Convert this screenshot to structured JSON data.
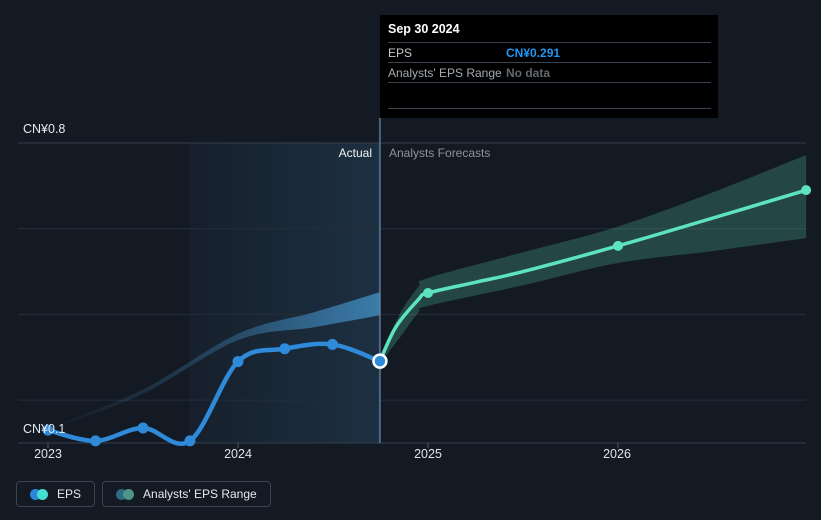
{
  "tooltip": {
    "date": "Sep 30 2024",
    "rows": [
      {
        "label": "EPS",
        "value": "CN¥0.291",
        "value_color": "#2196f3"
      },
      {
        "label": "Analysts' EPS Range",
        "value": "No data",
        "value_color": "#60686f"
      }
    ]
  },
  "legend": {
    "items": [
      {
        "label": "EPS",
        "dot_colors": [
          "#2b87d8",
          "#45dcd2"
        ]
      },
      {
        "label": "Analysts' EPS Range",
        "dot_colors": [
          "#2f6a85",
          "#4f9488"
        ]
      }
    ]
  },
  "chart_data": {
    "type": "line",
    "title": "EPS actual vs analysts forecasts",
    "currency": "CN¥",
    "ylim": [
      0.1,
      0.8
    ],
    "y_axis_labels": {
      "top": "CN¥0.8",
      "bottom": "CN¥0.1"
    },
    "y_gridline_values": [
      0.8,
      0.6,
      0.4,
      0.2
    ],
    "y_axis_value": 0.1,
    "region_labels": {
      "actual": "Actual",
      "forecast": "Analysts Forecasts"
    },
    "actual_region": {
      "start_year": 2023.745,
      "end_year": 2024.747
    },
    "hover": {
      "date": "Sep 30 2024",
      "year": 2024.747,
      "value": 0.291
    },
    "x_axis": {
      "ticks": [
        {
          "label": "2023",
          "year": 2023
        },
        {
          "label": "2024",
          "year": 2024
        },
        {
          "label": "2025",
          "year": 2025
        },
        {
          "label": "2026",
          "year": 2026
        }
      ]
    },
    "series": [
      {
        "name": "EPS",
        "kind": "actual",
        "color": "#2f8ad9",
        "points": [
          {
            "date": "Dec 31 2022",
            "year": 2023.0,
            "value": 0.13
          },
          {
            "date": "Mar 31 2023",
            "year": 2023.25,
            "value": 0.105
          },
          {
            "date": "Jun 30 2023",
            "year": 2023.5,
            "value": 0.135
          },
          {
            "date": "Sep 30 2023",
            "year": 2023.747,
            "value": 0.105
          },
          {
            "date": "Dec 31 2023",
            "year": 2024.0,
            "value": 0.29
          },
          {
            "date": "Mar 31 2024",
            "year": 2024.246,
            "value": 0.32
          },
          {
            "date": "Jun 30 2024",
            "year": 2024.497,
            "value": 0.33
          },
          {
            "date": "Sep 30 2024",
            "year": 2024.747,
            "value": 0.291
          }
        ]
      },
      {
        "name": "EPS forecast",
        "kind": "forecast",
        "color": "#5de3c1",
        "line_samples": [
          [
            2024.747,
            0.291
          ],
          [
            2024.83,
            0.37
          ],
          [
            2024.95,
            0.435
          ],
          [
            2025.0,
            0.45
          ],
          [
            2025.25,
            0.475
          ],
          [
            2025.5,
            0.5
          ],
          [
            2026.0,
            0.56
          ],
          [
            2026.5,
            0.625
          ],
          [
            2026.99,
            0.69
          ]
        ],
        "points": [
          {
            "date": "Dec 31 2024",
            "year": 2025.0,
            "value": 0.45
          },
          {
            "date": "Dec 31 2025",
            "year": 2026.0,
            "value": 0.56
          },
          {
            "date": "Dec 31 2026",
            "year": 2026.99,
            "value": 0.69
          }
        ]
      }
    ],
    "analyst_range_forecast": {
      "fill": "rgba(95,227,193,0.22)",
      "top": [
        [
          2024.747,
          0.295
        ],
        [
          2024.85,
          0.4
        ],
        [
          2024.95,
          0.465
        ],
        [
          2025.0,
          0.485
        ],
        [
          2025.5,
          0.545
        ],
        [
          2026.0,
          0.605
        ],
        [
          2026.5,
          0.685
        ],
        [
          2026.99,
          0.772
        ]
      ],
      "bottom": [
        [
          2024.747,
          0.285
        ],
        [
          2024.85,
          0.345
        ],
        [
          2024.95,
          0.405
        ],
        [
          2025.0,
          0.42
        ],
        [
          2025.5,
          0.468
        ],
        [
          2026.0,
          0.52
        ],
        [
          2026.5,
          0.548
        ],
        [
          2026.99,
          0.578
        ]
      ]
    },
    "analyst_range_past": {
      "top": [
        [
          2023.0,
          0.135
        ],
        [
          2023.5,
          0.225
        ],
        [
          2024.0,
          0.355
        ],
        [
          2024.4,
          0.405
        ],
        [
          2024.747,
          0.452
        ]
      ],
      "bottom": [
        [
          2023.0,
          0.13
        ],
        [
          2023.5,
          0.215
        ],
        [
          2024.0,
          0.34
        ],
        [
          2024.4,
          0.37
        ],
        [
          2024.747,
          0.398
        ]
      ]
    }
  }
}
